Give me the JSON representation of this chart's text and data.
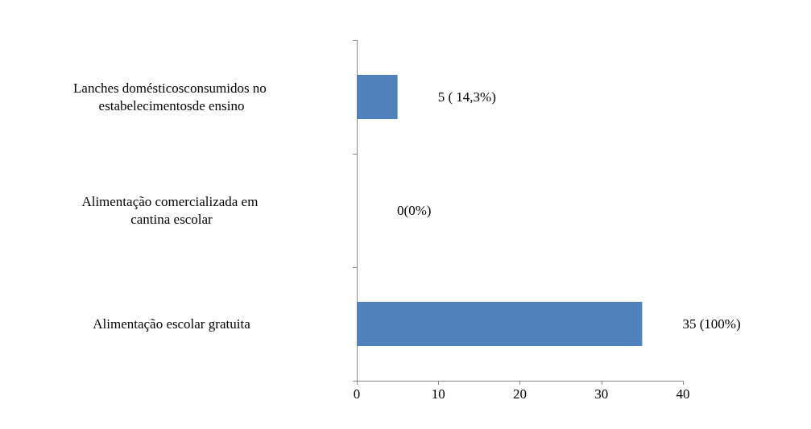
{
  "chart_data": {
    "type": "bar",
    "orientation": "horizontal",
    "categories": [
      "Lanches domésticosconsumidos no estabelecimentosde ensino",
      "Alimentação comercializada em cantina escolar",
      "Alimentação escolar gratuita"
    ],
    "values": [
      5,
      0,
      35
    ],
    "color": "#4f81bd",
    "value_labels": [
      "5 ( 14,3%)",
      "0(0%)",
      "35 (100%)"
    ],
    "xlim": [
      0,
      40
    ],
    "xticks": [
      0,
      10,
      20,
      30,
      40
    ],
    "grid": false
  }
}
